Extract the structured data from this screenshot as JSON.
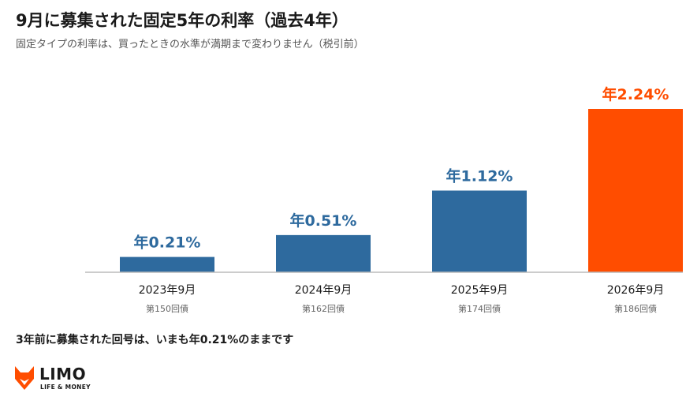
{
  "title": "9月に募集された固定5年の利率（過去4年）",
  "subtitle": "固定タイプの利率は、買ったときの水準が満期まで変わりません（税引前）",
  "footnote": "3年前に募集された回号は、いまも年0.21%のままです",
  "logo": {
    "word": "LIMO",
    "tagline": "LIFE & MONEY",
    "icon": "fox-head-icon"
  },
  "colors": {
    "normal": "#2E6A9E",
    "highlight": "#FF4D00",
    "axis": "#bbbbbb"
  },
  "chart_data": {
    "type": "bar",
    "categories": [
      "2023年9月",
      "2024年9月",
      "2025年9月",
      "2026年9月"
    ],
    "sublabels": [
      "第150回債",
      "第162回債",
      "第174回債",
      "第186回債"
    ],
    "values": [
      0.21,
      0.51,
      1.12,
      2.24
    ],
    "data_labels": [
      "年0.21%",
      "年0.51%",
      "年1.12%",
      "年2.24%"
    ],
    "highlight_index": 3,
    "ylim": [
      0,
      2.24
    ],
    "grid": false,
    "legend": "none"
  }
}
